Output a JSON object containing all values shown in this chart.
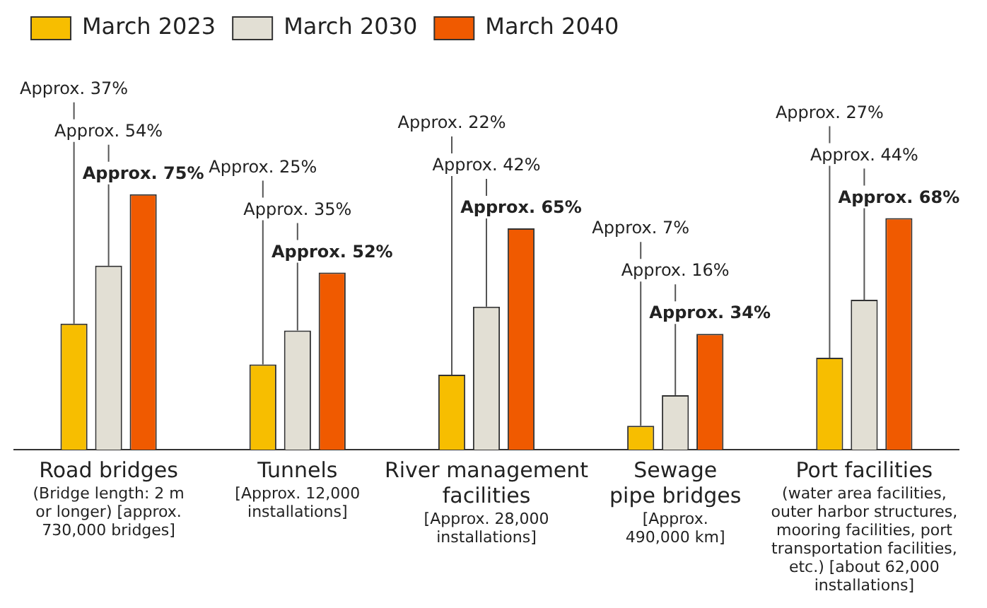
{
  "chart_data": {
    "type": "bar",
    "categories": [
      "Road bridges\n(Bridge length: 2 m\nor longer) [approx.\n730,000 bridges]",
      "Tunnels\n[Approx. 12,000\ninstallations]",
      "River management\nfacilities\n[Approx. 28,000\ninstallations]",
      "Sewage\npipe bridges\n[Approx.\n490,000 km]",
      "Port facilities\n(water area facilities,\nouter harbor structures,\nmooring facilities, port\ntransportation facilities,\netc.) [about 62,000\ninstallations]"
    ],
    "series": [
      {
        "name": "March 2023",
        "color": "#f7be00",
        "values": [
          37,
          25,
          22,
          7,
          27
        ],
        "value_labels": [
          "Approx. 37%",
          "Approx. 25%",
          "Approx. 22%",
          "Approx. 7%",
          "Approx. 27%"
        ]
      },
      {
        "name": "March 2030",
        "color": "#e2dfd4",
        "values": [
          54,
          35,
          42,
          16,
          44
        ],
        "value_labels": [
          "Approx. 54%",
          "Approx. 35%",
          "Approx. 42%",
          "Approx. 16%",
          "Approx. 44%"
        ]
      },
      {
        "name": "March 2040",
        "color": "#f05a00",
        "values": [
          75,
          52,
          65,
          34,
          68
        ],
        "value_labels": [
          "Approx. 75%",
          "Approx. 52%",
          "Approx. 65%",
          "Approx. 34%",
          "Approx. 68%"
        ]
      }
    ],
    "legend": "top left",
    "grid": false
  }
}
